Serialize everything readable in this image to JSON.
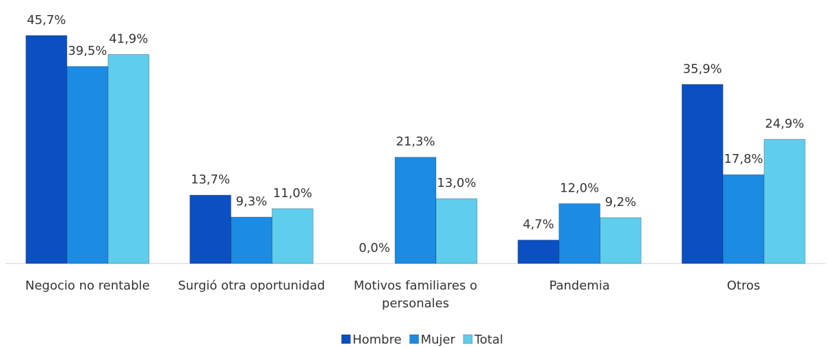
{
  "chart_data": {
    "type": "bar",
    "categories": [
      "Negocio no rentable",
      "Surgió otra oportunidad",
      "Motivos familiares o personales",
      "Pandemia",
      "Otros"
    ],
    "series": [
      {
        "name": "Hombre",
        "color": "#0b4fc2",
        "values": [
          45.7,
          13.7,
          0.0,
          4.7,
          35.9
        ],
        "value_labels": [
          "45,7%",
          "13,7%",
          "0,0%",
          "4,7%",
          "35,9%"
        ]
      },
      {
        "name": "Mujer",
        "color": "#1b8be4",
        "values": [
          39.5,
          9.3,
          21.3,
          12.0,
          17.8
        ],
        "value_labels": [
          "39,5%",
          "9,3%",
          "21,3%",
          "12,0%",
          "17,8%"
        ]
      },
      {
        "name": "Total",
        "color": "#5fcdec",
        "values": [
          41.9,
          11.0,
          13.0,
          9.2,
          24.9
        ],
        "value_labels": [
          "41,9%",
          "11,0%",
          "13,0%",
          "9,2%",
          "24,9%"
        ]
      }
    ],
    "legend": "bottom"
  }
}
